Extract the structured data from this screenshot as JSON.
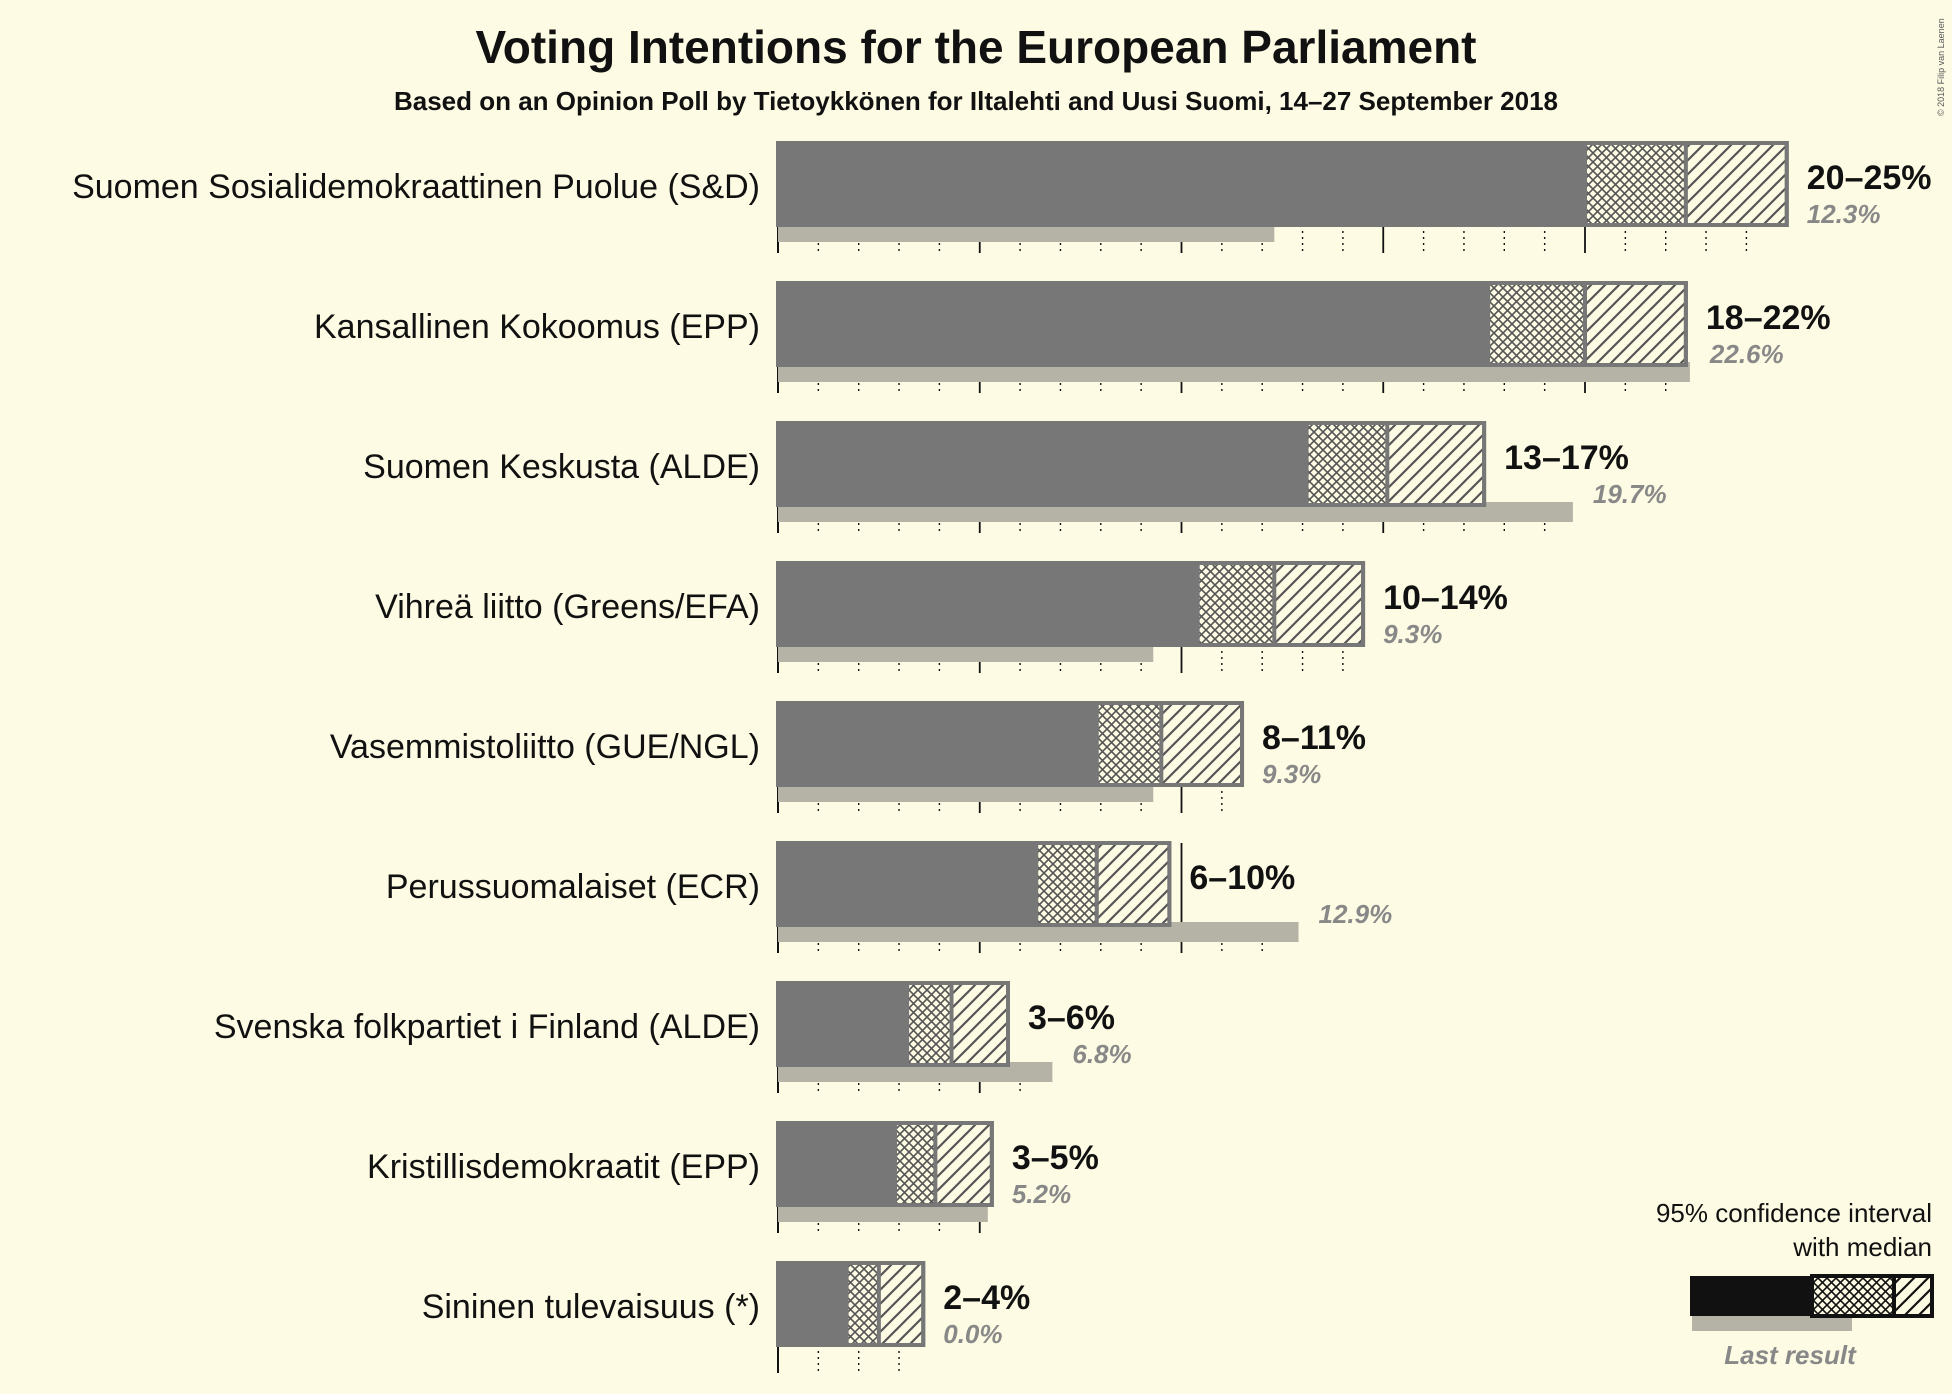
{
  "chart_data": {
    "type": "bar",
    "title": "Voting Intentions for the European Parliament",
    "subtitle": "Based on an Opinion Poll by Tietoykkönen for Iltalehti and Uusi Suomi, 14–27 September 2018",
    "copyright": "© 2018 Filip van Laenen",
    "xlim": [
      0,
      25
    ],
    "series": [
      {
        "party": "Suomen Sosialidemokraattinen Puolue (S&D)",
        "low": 20,
        "median": 22.5,
        "high": 25,
        "range_label": "20–25%",
        "last": 12.3,
        "last_label": "12.3%"
      },
      {
        "party": "Kansallinen Kokoomus (EPP)",
        "low": 17.6,
        "median": 20,
        "high": 22.5,
        "range_label": "18–22%",
        "last": 22.6,
        "last_label": "22.6%"
      },
      {
        "party": "Suomen Keskusta (ALDE)",
        "low": 13.1,
        "median": 15.1,
        "high": 17.5,
        "range_label": "13–17%",
        "last": 19.7,
        "last_label": "19.7%"
      },
      {
        "party": "Vihreä liitto (Greens/EFA)",
        "low": 10.4,
        "median": 12.3,
        "high": 14.5,
        "range_label": "10–14%",
        "last": 9.3,
        "last_label": "9.3%"
      },
      {
        "party": "Vasemmistoliitto (GUE/NGL)",
        "low": 7.9,
        "median": 9.5,
        "high": 11.5,
        "range_label": "8–11%",
        "last": 9.3,
        "last_label": "9.3%"
      },
      {
        "party": "Perussuomalaiset (ECR)",
        "low": 6.4,
        "median": 7.9,
        "high": 9.7,
        "range_label": "6–10%",
        "last": 12.9,
        "last_label": "12.9%"
      },
      {
        "party": "Svenska folkpartiet i Finland (ALDE)",
        "low": 3.2,
        "median": 4.3,
        "high": 5.7,
        "range_label": "3–6%",
        "last": 6.8,
        "last_label": "6.8%"
      },
      {
        "party": "Kristillisdemokraatit (EPP)",
        "low": 2.9,
        "median": 3.9,
        "high": 5.3,
        "range_label": "3–5%",
        "last": 5.2,
        "last_label": "5.2%"
      },
      {
        "party": "Sininen tulevaisuus (*)",
        "low": 1.7,
        "median": 2.5,
        "high": 3.6,
        "range_label": "2–4%",
        "last": 0.0,
        "last_label": "0.0%"
      }
    ],
    "legend": {
      "line1": "95% confidence interval",
      "line2": "with median",
      "last_result": "Last result",
      "placement": "bottom-right"
    },
    "colors": {
      "bar": "#777777",
      "last": "#b5b3a6",
      "background": "#fdfbe4",
      "legend_bar": "#111111"
    }
  }
}
